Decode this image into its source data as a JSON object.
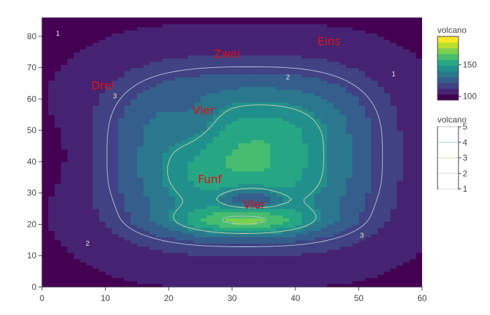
{
  "chart_data": {
    "type": "heatmap",
    "title": "",
    "xlabel": "",
    "ylabel": "",
    "xlim": [
      0,
      60
    ],
    "ylim": [
      0,
      86
    ],
    "x_ticks": [
      "0",
      "10",
      "20",
      "30",
      "40",
      "50",
      "60"
    ],
    "y_ticks": [
      "0",
      "10",
      "20",
      "30",
      "40",
      "50",
      "60",
      "70",
      "80"
    ],
    "filled_contour": {
      "name": "volcano",
      "colorscale": "Viridis",
      "zlim": [
        94,
        195
      ],
      "colorbar_title": "volcano",
      "colorbar_ticks": [
        "100",
        "150"
      ],
      "model": {
        "base": 100,
        "plateau": {
          "cx": 32,
          "cy": 42,
          "rx": 20,
          "ry": 26,
          "amp": 60
        },
        "peak": {
          "cx": 32,
          "cy": 21,
          "rx": 11,
          "ry": 4.5,
          "amp": 38
        },
        "crater": {
          "cx": 33,
          "cy": 28,
          "rx": 4.5,
          "ry": 3.5,
          "amp": -28
        },
        "notch": {
          "cx": 24,
          "cy": 52,
          "rx": 5,
          "ry": 9,
          "amp": -14
        },
        "edge_low": {
          "cx": 0,
          "cy": 42,
          "rx": 4,
          "ry": 10,
          "amp": -8
        }
      }
    },
    "line_contour": {
      "name": "volcano",
      "levels": [
        1,
        2,
        3,
        4,
        5
      ],
      "colorbar_title": "volcano",
      "colorbar_ticks": [
        "1",
        "2",
        "3",
        "4",
        "5"
      ],
      "line_colors": [
        "#d8d8d8",
        "#c8d8e8",
        "#ead8a8",
        "#b8c8d8",
        "#c8b8c8"
      ],
      "labels": [
        {
          "text": "1",
          "x": 2.5,
          "y": 81
        },
        {
          "text": "1",
          "x": 55.5,
          "y": 68
        },
        {
          "text": "2",
          "x": 38.8,
          "y": 67
        },
        {
          "text": "2",
          "x": 7.2,
          "y": 14
        },
        {
          "text": "3",
          "x": 11.5,
          "y": 61
        },
        {
          "text": "3",
          "x": 50.5,
          "y": 16.5
        }
      ]
    },
    "annotations": [
      {
        "text": "Eins",
        "x": 45.3,
        "y": 78.5
      },
      {
        "text": "Zwei",
        "x": 29.2,
        "y": 74.5
      },
      {
        "text": "Drei",
        "x": 9.6,
        "y": 64.5
      },
      {
        "text": "Vier",
        "x": 25.5,
        "y": 56.5
      },
      {
        "text": "Funf",
        "x": 26.5,
        "y": 34.5
      },
      {
        "text": "Vier",
        "x": 33.5,
        "y": 26.5
      }
    ]
  }
}
